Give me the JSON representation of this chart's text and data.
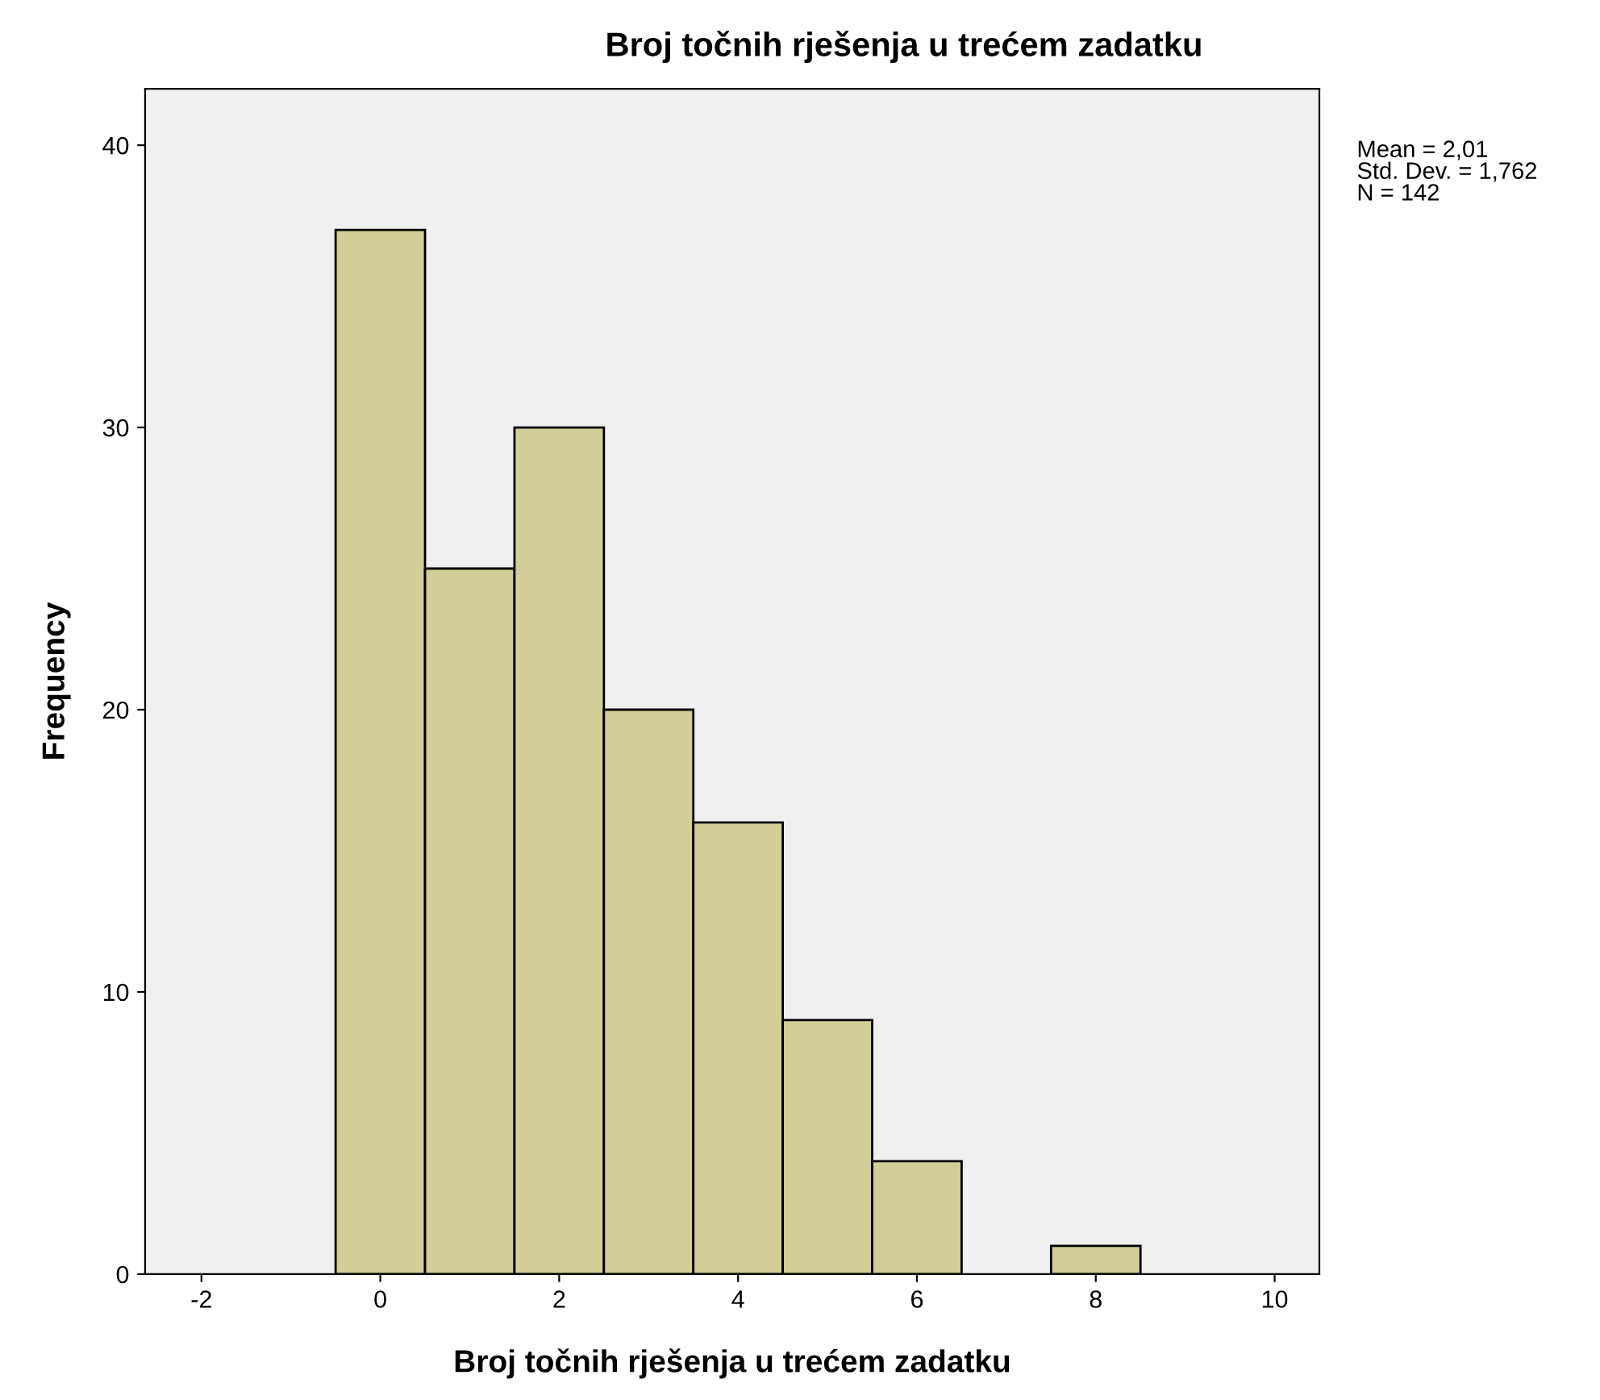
{
  "chart_data": {
    "type": "histogram",
    "title": "Broj točnih rješenja u trećem zadatku",
    "xlabel": "Broj točnih rješenja u trećem zadatku",
    "ylabel": "Frequency",
    "bins": [
      -0.5,
      0.5,
      1.5,
      2.5,
      3.5,
      4.5,
      5.5,
      6.5,
      7.5,
      8.5
    ],
    "values": [
      37,
      25,
      30,
      20,
      16,
      9,
      4,
      0,
      1
    ],
    "color": "#d3ce97",
    "xlim": [
      -2.63,
      10.5
    ],
    "xticks": [
      -2,
      0,
      2,
      4,
      6,
      8,
      10
    ],
    "ylim": [
      0,
      42
    ],
    "yticks": [
      0,
      10,
      20,
      30,
      40
    ],
    "grid": false,
    "legend": false,
    "annotations": [
      "Mean = 2,01",
      "Std. Dev. = 1,762",
      "N = 142"
    ]
  }
}
